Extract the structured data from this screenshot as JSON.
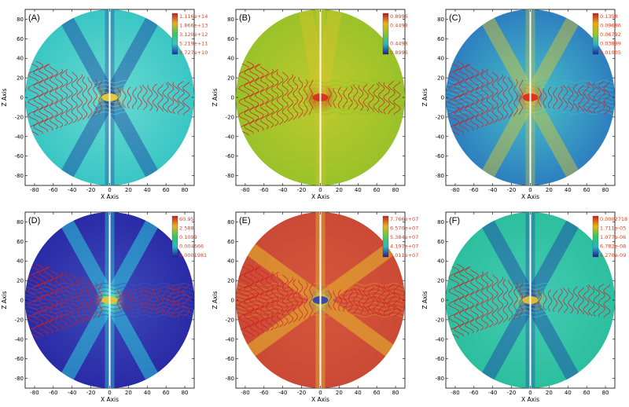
{
  "figure": {
    "panels": [
      {
        "label": "(A)",
        "colormap": "cyan",
        "colorbar_labels": [
          "1.116e+14",
          "1.866e+13",
          "3.120e+12",
          "5.219e+11",
          "8.727e+10"
        ]
      },
      {
        "label": "(B)",
        "colormap": "green",
        "colorbar_labels": [
          "0.8996",
          "0.4498",
          "",
          "0.4498",
          "0.8996"
        ]
      },
      {
        "label": "(C)",
        "colormap": "blue_yellow",
        "colorbar_labels": [
          "0.1358",
          "0.09686",
          "0.06792",
          "0.03899",
          "0.01005"
        ]
      },
      {
        "label": "(D)",
        "colormap": "dark_blue",
        "colorbar_labels": [
          "60.95",
          "2.588",
          "0.1099",
          "0.004666",
          "0.0001981"
        ]
      },
      {
        "label": "(E)",
        "colormap": "red",
        "colorbar_labels": [
          "7.766e+07",
          "6.570e+07",
          "5.384e+07",
          "4.197e+07",
          "3.011e+07"
        ]
      },
      {
        "label": "(F)",
        "colormap": "teal",
        "colorbar_labels": [
          "0.0002718",
          "1.711e-05",
          "1.077e-06",
          "6.782e-08",
          "4.270e-09"
        ]
      }
    ]
  },
  "chart_data": {
    "type": "heatmap",
    "xlabel": "X Axis",
    "ylabel": "Z Axis",
    "xlim": [
      -90,
      90
    ],
    "ylim": [
      -90,
      90
    ],
    "x_ticks": [
      -80,
      -60,
      -40,
      -20,
      0,
      20,
      40,
      60,
      80
    ],
    "y_ticks": [
      -80,
      -60,
      -40,
      -20,
      0,
      20,
      40,
      60,
      80
    ],
    "domain_radius": 90
  }
}
